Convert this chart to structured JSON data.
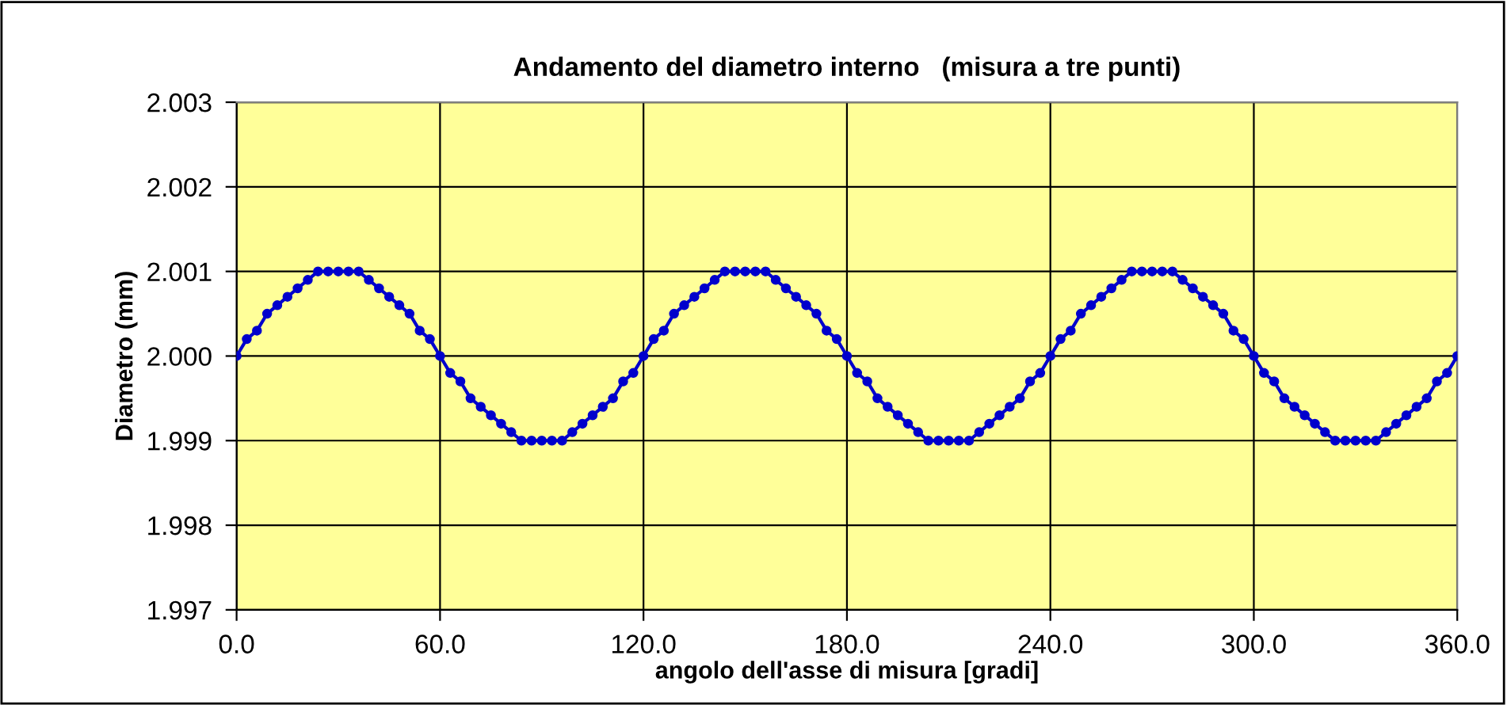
{
  "chart_data": {
    "type": "line",
    "title": "Andamento del diametro interno   (misura a tre punti)",
    "xlabel": "angolo dell'asse di misura [gradi]",
    "ylabel": "Diametro (mm)",
    "x": [
      0,
      3,
      6,
      9,
      12,
      15,
      18,
      21,
      24,
      27,
      30,
      33,
      36,
      39,
      42,
      45,
      48,
      51,
      54,
      57,
      60,
      63,
      66,
      69,
      72,
      75,
      78,
      81,
      84,
      87,
      90,
      93,
      96,
      99,
      102,
      105,
      108,
      111,
      114,
      117,
      120,
      123,
      126,
      129,
      132,
      135,
      138,
      141,
      144,
      147,
      150,
      153,
      156,
      159,
      162,
      165,
      168,
      171,
      174,
      177,
      180,
      183,
      186,
      189,
      192,
      195,
      198,
      201,
      204,
      207,
      210,
      213,
      216,
      219,
      222,
      225,
      228,
      231,
      234,
      237,
      240,
      243,
      246,
      249,
      252,
      255,
      258,
      261,
      264,
      267,
      270,
      273,
      276,
      279,
      282,
      285,
      288,
      291,
      294,
      297,
      300,
      303,
      306,
      309,
      312,
      315,
      318,
      321,
      324,
      327,
      330,
      333,
      336,
      339,
      342,
      345,
      348,
      351,
      354,
      357,
      360
    ],
    "series": [
      {
        "color": "#0000cc",
        "values": [
          2.0,
          2.0002,
          2.0003,
          2.0005,
          2.0006,
          2.0007,
          2.0008,
          2.0009,
          2.001,
          2.001,
          2.001,
          2.001,
          2.001,
          2.0009,
          2.0008,
          2.0007,
          2.0006,
          2.0005,
          2.0003,
          2.0002,
          2.0,
          1.9998,
          1.9997,
          1.9995,
          1.9994,
          1.9993,
          1.9992,
          1.9991,
          1.999,
          1.999,
          1.999,
          1.999,
          1.999,
          1.9991,
          1.9992,
          1.9993,
          1.9994,
          1.9995,
          1.9997,
          1.9998,
          2.0,
          2.0002,
          2.0003,
          2.0005,
          2.0006,
          2.0007,
          2.0008,
          2.0009,
          2.001,
          2.001,
          2.001,
          2.001,
          2.001,
          2.0009,
          2.0008,
          2.0007,
          2.0006,
          2.0005,
          2.0003,
          2.0002,
          2.0,
          1.9998,
          1.9997,
          1.9995,
          1.9994,
          1.9993,
          1.9992,
          1.9991,
          1.999,
          1.999,
          1.999,
          1.999,
          1.999,
          1.9991,
          1.9992,
          1.9993,
          1.9994,
          1.9995,
          1.9997,
          1.9998,
          2.0,
          2.0002,
          2.0003,
          2.0005,
          2.0006,
          2.0007,
          2.0008,
          2.0009,
          2.001,
          2.001,
          2.001,
          2.001,
          2.001,
          2.0009,
          2.0008,
          2.0007,
          2.0006,
          2.0005,
          2.0003,
          2.0002,
          2.0,
          1.9998,
          1.9997,
          1.9995,
          1.9994,
          1.9993,
          1.9992,
          1.9991,
          1.999,
          1.999,
          1.999,
          1.999,
          1.999,
          1.9991,
          1.9992,
          1.9993,
          1.9994,
          1.9995,
          1.9997,
          1.9998,
          2.0
        ]
      }
    ],
    "xlim": [
      0,
      360
    ],
    "ylim": [
      1.997,
      2.003
    ],
    "xticks": [
      {
        "value": 0,
        "label": "0.0"
      },
      {
        "value": 60,
        "label": "60.0"
      },
      {
        "value": 120,
        "label": "120.0"
      },
      {
        "value": 180,
        "label": "180.0"
      },
      {
        "value": 240,
        "label": "240.0"
      },
      {
        "value": 300,
        "label": "300.0"
      },
      {
        "value": 360,
        "label": "360.0"
      }
    ],
    "yticks": [
      {
        "value": 1.997,
        "label": "1.997"
      },
      {
        "value": 1.998,
        "label": "1.998"
      },
      {
        "value": 1.999,
        "label": "1.999"
      },
      {
        "value": 2.0,
        "label": "2.000"
      },
      {
        "value": 2.001,
        "label": "2.001"
      },
      {
        "value": 2.002,
        "label": "2.002"
      },
      {
        "value": 2.003,
        "label": "2.003"
      }
    ],
    "grid": true,
    "marker": "circle",
    "line_style": "solid"
  }
}
